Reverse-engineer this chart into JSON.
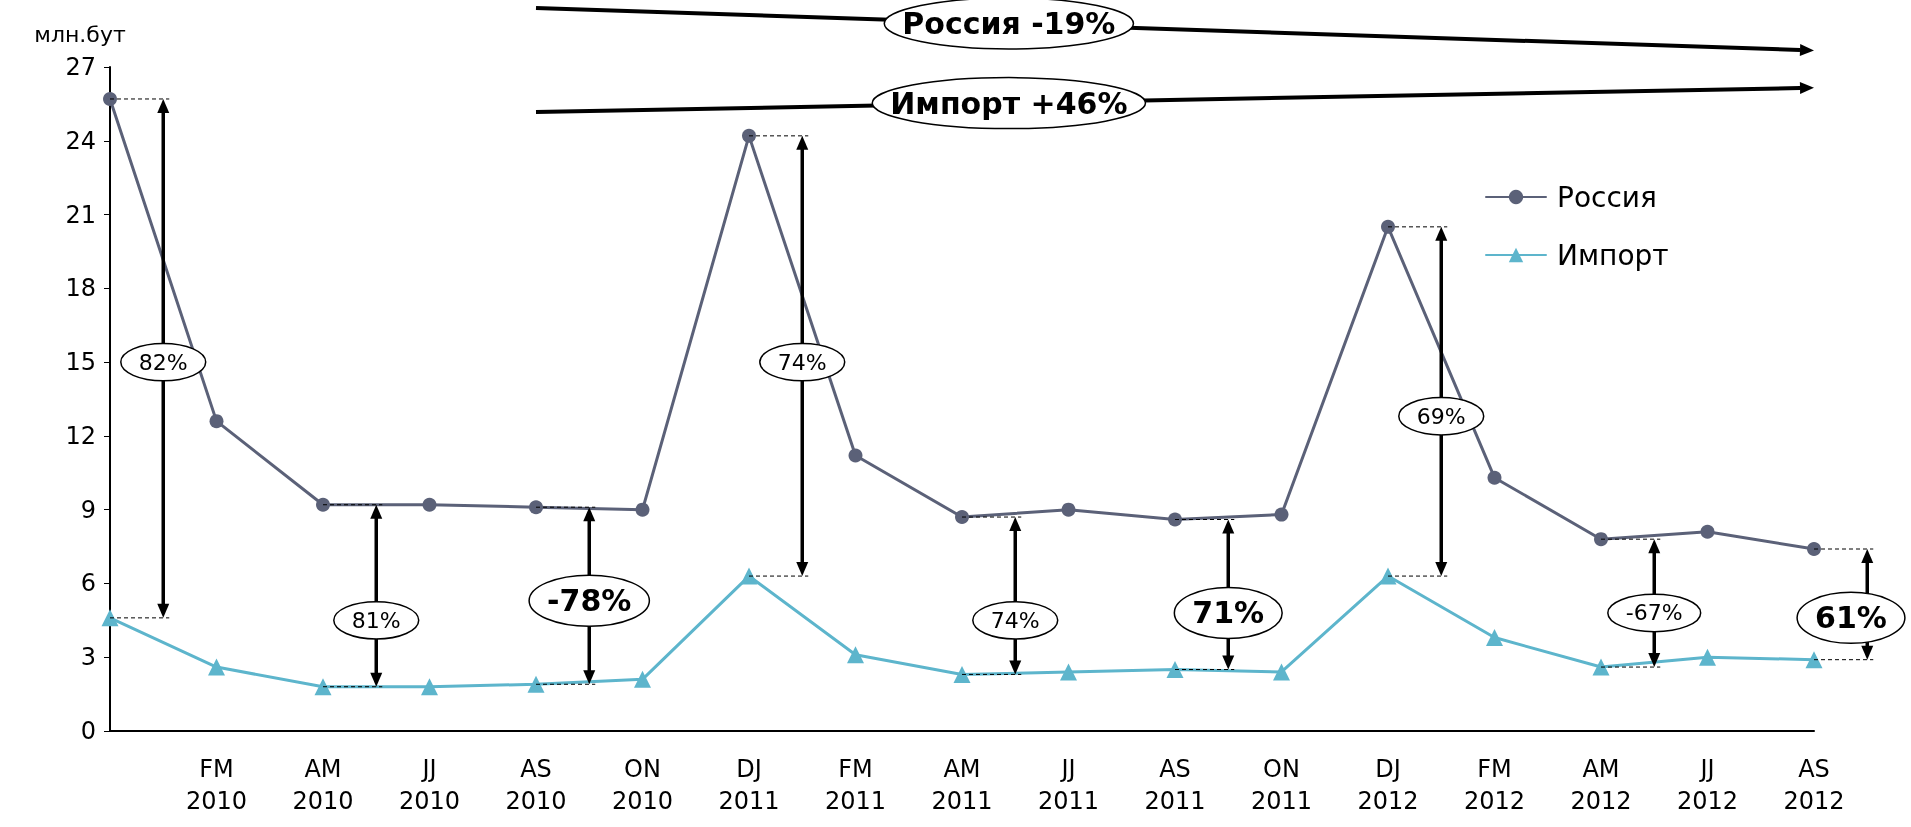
{
  "chart_data": {
    "type": "line",
    "ylabel": "млн.бут",
    "categories": [
      null,
      "FM 2010",
      "AM 2010",
      "JJ 2010",
      "AS 2010",
      "ON 2010",
      "DJ 2011",
      "FM 2011",
      "AM 2011",
      "JJ 2011",
      "AS 2011",
      "ON 2011",
      "DJ 2012",
      "FM 2012",
      "AM 2012",
      "JJ 2012",
      "AS 2012"
    ],
    "series": [
      {
        "name": "Россия",
        "color": "#5b6178",
        "marker": "circle",
        "values": [
          25.7,
          12.6,
          9.2,
          9.2,
          9.1,
          9.0,
          24.2,
          11.2,
          8.7,
          9.0,
          8.6,
          8.8,
          20.5,
          10.3,
          7.8,
          8.1,
          7.4
        ]
      },
      {
        "name": "Импорт",
        "color": "#5db5cc",
        "marker": "triangle",
        "values": [
          4.6,
          2.6,
          1.8,
          1.8,
          1.9,
          2.1,
          6.3,
          3.1,
          2.3,
          2.4,
          2.5,
          2.4,
          6.3,
          3.8,
          2.6,
          3.0,
          2.9
        ]
      }
    ],
    "ylim": [
      0,
      27
    ],
    "yticks": [
      0,
      3,
      6,
      9,
      12,
      15,
      18,
      21,
      24,
      27
    ],
    "grid": false,
    "legend": "top right",
    "line_style": "solid",
    "annotations": [
      "Россия -19%",
      "Импорт +46%",
      "82%",
      "81%",
      "-78%",
      "74%",
      "74%",
      "71%",
      "69%",
      "-67%",
      "61%"
    ]
  }
}
